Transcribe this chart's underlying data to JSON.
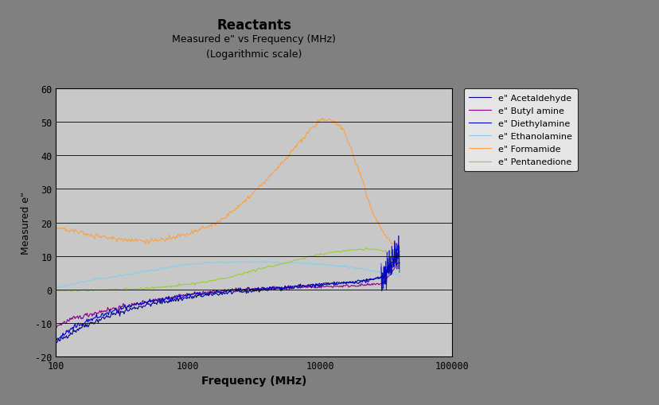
{
  "title": "Reactants",
  "subtitle1": "Measured e\" vs Frequency (MHz)",
  "subtitle2": "(Logarithmic scale)",
  "xlabel": "Frequency (MHz)",
  "ylabel": "Measured e\"",
  "xlim": [
    100,
    100000
  ],
  "ylim": [
    -20,
    60
  ],
  "yticks": [
    -20,
    -10,
    0,
    10,
    20,
    30,
    40,
    50,
    60
  ],
  "xtick_values": [
    100,
    1000,
    10000,
    100000
  ],
  "background_color": "#808080",
  "plot_bg_color": "#c8c8c8",
  "series": [
    {
      "name": "e\" Acetaldehyde",
      "color": "#00008B",
      "x_ctrl": [
        100,
        130,
        160,
        200,
        250,
        300,
        400,
        500,
        700,
        1000,
        1500,
        2000,
        3000,
        5000,
        7000,
        10000,
        15000,
        20000,
        25000,
        30000,
        35000,
        38000,
        40000
      ],
      "y_ctrl": [
        -16,
        -13,
        -11,
        -9.5,
        -8,
        -7,
        -5.5,
        -4.5,
        -3.5,
        -2.5,
        -1.5,
        -1,
        -0.5,
        0.5,
        1,
        1.5,
        2,
        2.5,
        3,
        3.5,
        7,
        9.5,
        10
      ]
    },
    {
      "name": "e\" Butyl amine",
      "color": "#8B008B",
      "x_ctrl": [
        100,
        130,
        160,
        200,
        250,
        300,
        400,
        500,
        700,
        1000,
        1500,
        2000,
        3000,
        5000,
        7000,
        10000,
        15000,
        20000,
        25000,
        30000,
        35000,
        38000,
        40000
      ],
      "y_ctrl": [
        -11,
        -9,
        -8,
        -7,
        -6,
        -5.5,
        -4.5,
        -3.5,
        -2.5,
        -1.5,
        -0.8,
        -0.4,
        0,
        0.3,
        0.6,
        0.8,
        1,
        1.2,
        1.4,
        1.8,
        5,
        7.5,
        8
      ]
    },
    {
      "name": "e\" Diethylamine",
      "color": "#0000CD",
      "x_ctrl": [
        100,
        130,
        160,
        200,
        250,
        300,
        400,
        500,
        700,
        1000,
        1500,
        2000,
        3000,
        5000,
        7000,
        10000,
        15000,
        20000,
        25000,
        30000,
        35000,
        38000,
        40000
      ],
      "y_ctrl": [
        -15,
        -12,
        -10,
        -8.5,
        -7,
        -6,
        -4.8,
        -3.8,
        -2.8,
        -1.8,
        -1,
        -0.5,
        0,
        0.4,
        0.8,
        1.2,
        1.8,
        2.2,
        2.8,
        4,
        8,
        10.5,
        11
      ]
    },
    {
      "name": "e\" Ethanolamine",
      "color": "#87CEEB",
      "x_ctrl": [
        100,
        150,
        200,
        300,
        500,
        700,
        1000,
        1500,
        2000,
        3000,
        5000,
        7000,
        10000,
        15000,
        20000,
        25000,
        30000,
        35000,
        40000
      ],
      "y_ctrl": [
        0.5,
        2,
        3,
        4,
        5.5,
        6.5,
        7.5,
        8,
        8.2,
        8.2,
        8,
        7.8,
        7.5,
        6.8,
        6.2,
        5.5,
        5,
        4.5,
        4
      ]
    },
    {
      "name": "e\" Formamide",
      "color": "#FFA040",
      "x_ctrl": [
        100,
        150,
        200,
        300,
        500,
        700,
        1000,
        1500,
        2000,
        3000,
        5000,
        7000,
        10000,
        12000,
        15000,
        20000,
        25000,
        30000,
        35000,
        38000,
        40000
      ],
      "y_ctrl": [
        18.5,
        17,
        16,
        15,
        14.5,
        15,
        16.5,
        19,
        22,
        28,
        37,
        44,
        50.5,
        51,
        48,
        35,
        23,
        17,
        14,
        13.5,
        13
      ]
    },
    {
      "name": "e\" Pentanedione",
      "color": "#9ACD32",
      "x_ctrl": [
        100,
        150,
        200,
        300,
        500,
        700,
        1000,
        1500,
        2000,
        3000,
        5000,
        7000,
        10000,
        15000,
        20000,
        25000,
        30000,
        35000,
        40000
      ],
      "y_ctrl": [
        -0.5,
        -0.3,
        -0.2,
        0,
        0.3,
        0.8,
        1.5,
        2.5,
        3.5,
        5.5,
        7.5,
        9,
        10.5,
        11.5,
        12,
        12,
        11.5,
        11,
        10.5
      ]
    }
  ]
}
